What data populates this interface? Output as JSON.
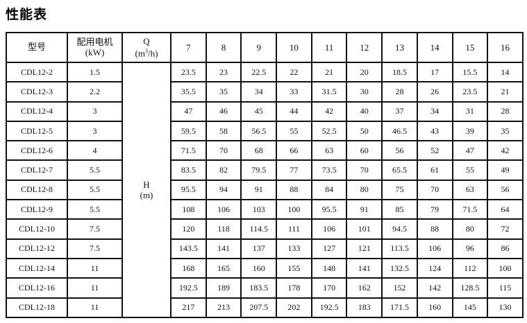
{
  "title": "性能表",
  "header": {
    "model": "型号",
    "motor_label": "配用电机",
    "motor_unit": "(kW)",
    "q_label": "Q",
    "q_unit_pre": "(m",
    "q_unit_sup": "3",
    "q_unit_post": "/h)",
    "flows": [
      "7",
      "8",
      "9",
      "10",
      "11",
      "12",
      "13",
      "14",
      "15",
      "16"
    ]
  },
  "h_label": "H",
  "h_unit": "(m)",
  "rows": [
    {
      "model": "CDL12-2",
      "kw": "1.5",
      "h": [
        "23.5",
        "23",
        "22.5",
        "22",
        "21",
        "20",
        "18.5",
        "17",
        "15.5",
        "14"
      ]
    },
    {
      "model": "CDL12-3",
      "kw": "2.2",
      "h": [
        "35.5",
        "35",
        "34",
        "33",
        "31.5",
        "30",
        "28",
        "26",
        "23.5",
        "21"
      ]
    },
    {
      "model": "CDL12-4",
      "kw": "3",
      "h": [
        "47",
        "46",
        "45",
        "44",
        "42",
        "40",
        "37",
        "34",
        "31",
        "28"
      ]
    },
    {
      "model": "CDL12-5",
      "kw": "3",
      "h": [
        "59.5",
        "58",
        "56.5",
        "55",
        "52.5",
        "50",
        "46.5",
        "43",
        "39",
        "35"
      ]
    },
    {
      "model": "CDL12-6",
      "kw": "4",
      "h": [
        "71.5",
        "70",
        "68",
        "66",
        "63",
        "60",
        "56",
        "52",
        "47",
        "42"
      ]
    },
    {
      "model": "CDL12-7",
      "kw": "5.5",
      "h": [
        "83.5",
        "82",
        "79.5",
        "77",
        "73.5",
        "70",
        "65.5",
        "61",
        "55",
        "49"
      ]
    },
    {
      "model": "CDL12-8",
      "kw": "5.5",
      "h": [
        "95.5",
        "94",
        "91",
        "88",
        "84",
        "80",
        "75",
        "70",
        "63",
        "56"
      ]
    },
    {
      "model": "CDL12-9",
      "kw": "5.5",
      "h": [
        "108",
        "106",
        "103",
        "100",
        "95.5",
        "91",
        "85",
        "79",
        "71.5",
        "64"
      ]
    },
    {
      "model": "CDL12-10",
      "kw": "7.5",
      "h": [
        "120",
        "118",
        "114.5",
        "111",
        "106",
        "101",
        "94.5",
        "88",
        "80",
        "72"
      ]
    },
    {
      "model": "CDL12-12",
      "kw": "7.5",
      "h": [
        "143.5",
        "141",
        "137",
        "133",
        "127",
        "121",
        "113.5",
        "106",
        "96",
        "86"
      ]
    },
    {
      "model": "CDL12-14",
      "kw": "11",
      "h": [
        "168",
        "165",
        "160",
        "155",
        "148",
        "141",
        "132.5",
        "124",
        "112",
        "100"
      ]
    },
    {
      "model": "CDL12-16",
      "kw": "11",
      "h": [
        "192.5",
        "189",
        "183.5",
        "178",
        "170",
        "162",
        "152",
        "142",
        "128.5",
        "115"
      ]
    },
    {
      "model": "CDL12-18",
      "kw": "11",
      "h": [
        "217",
        "213",
        "207.5",
        "202",
        "192.5",
        "183",
        "171.5",
        "160",
        "145",
        "130"
      ]
    }
  ]
}
